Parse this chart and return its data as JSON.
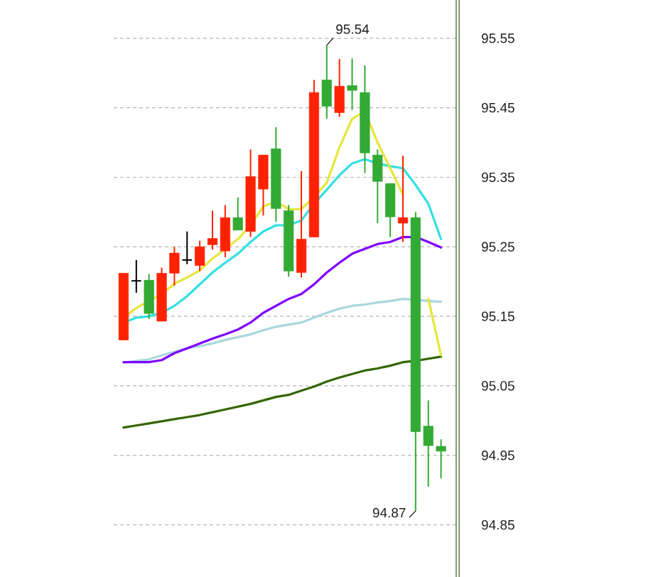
{
  "chart_data": {
    "type": "candlestick",
    "categories": [
      null,
      null,
      null,
      null,
      null,
      null,
      null,
      null,
      null,
      null,
      null,
      null,
      null,
      null,
      null,
      null,
      null,
      null,
      null,
      null,
      null,
      null,
      null,
      null,
      null,
      null
    ],
    "ohlc": [
      [
        95.116,
        95.212,
        95.116,
        95.212
      ],
      [
        95.201,
        95.231,
        95.184,
        95.201
      ],
      [
        95.202,
        95.211,
        95.146,
        95.154
      ],
      [
        95.143,
        95.22,
        95.143,
        95.212
      ],
      [
        95.212,
        95.25,
        95.194,
        95.241
      ],
      [
        95.231,
        95.272,
        95.225,
        95.231
      ],
      [
        95.223,
        95.259,
        95.215,
        95.25
      ],
      [
        95.253,
        95.302,
        95.246,
        95.262
      ],
      [
        95.244,
        95.31,
        95.235,
        95.292
      ],
      [
        95.292,
        95.321,
        95.274,
        95.274
      ],
      [
        95.272,
        95.39,
        95.264,
        95.351
      ],
      [
        95.333,
        95.382,
        95.295,
        95.382
      ],
      [
        95.391,
        95.422,
        95.286,
        95.305
      ],
      [
        95.302,
        95.31,
        95.207,
        95.215
      ],
      [
        95.213,
        95.359,
        95.206,
        95.261
      ],
      [
        95.264,
        95.49,
        95.264,
        95.472
      ],
      [
        95.49,
        95.54,
        95.434,
        95.452
      ],
      [
        95.443,
        95.52,
        95.437,
        95.481
      ],
      [
        95.482,
        95.521,
        95.447,
        95.475
      ],
      [
        95.472,
        95.511,
        95.356,
        95.385
      ],
      [
        95.382,
        95.39,
        95.284,
        95.344
      ],
      [
        95.341,
        95.341,
        95.264,
        95.293
      ],
      [
        95.284,
        95.381,
        95.257,
        95.292
      ],
      [
        95.292,
        95.3,
        94.87,
        94.984
      ],
      [
        94.992,
        95.029,
        94.905,
        94.964
      ],
      [
        94.963,
        94.973,
        94.917,
        94.956
      ]
    ],
    "colors": [
      "#ff2200",
      "#000000",
      "#33aa33",
      "#ff2200",
      "#ff2200",
      "#000000",
      "#ff2200",
      "#ff2200",
      "#ff2200",
      "#33aa33",
      "#ff2200",
      "#ff2200",
      "#33aa33",
      "#33aa33",
      "#ff2200",
      "#ff2200",
      "#33aa33",
      "#ff2200",
      "#33aa33",
      "#33aa33",
      "#33aa33",
      "#33aa33",
      "#ff2200",
      "#33aa33",
      "#33aa33",
      "#33aa33"
    ],
    "series": [
      {
        "type": "line",
        "color": "#336600",
        "values": [
          94.99,
          94.993,
          94.996,
          94.999,
          95.002,
          95.005,
          95.008,
          95.012,
          95.016,
          95.02,
          95.024,
          95.029,
          95.034,
          95.037,
          95.043,
          95.049,
          95.056,
          95.062,
          95.067,
          95.072,
          95.075,
          95.079,
          95.084,
          95.086,
          95.089,
          95.092
        ]
      },
      {
        "type": "line",
        "color": "#a8d8dc",
        "values": [
          95.083,
          95.086,
          95.088,
          95.094,
          95.099,
          95.104,
          95.107,
          95.111,
          95.116,
          95.12,
          95.124,
          95.13,
          95.135,
          95.138,
          95.141,
          95.148,
          95.155,
          95.161,
          95.165,
          95.167,
          95.17,
          95.172,
          95.175,
          95.174,
          95.172,
          95.171
        ]
      },
      {
        "type": "line",
        "color": "#8000ff",
        "values": [
          95.084,
          95.084,
          95.084,
          95.087,
          95.097,
          95.104,
          95.111,
          95.118,
          95.124,
          95.131,
          95.141,
          95.155,
          95.165,
          95.175,
          95.182,
          95.196,
          95.213,
          95.227,
          95.24,
          95.247,
          95.254,
          95.257,
          95.264,
          95.264,
          95.257,
          95.249
        ]
      },
      {
        "type": "line",
        "color": "#33e0e0",
        "values": [
          95.141,
          95.148,
          95.15,
          95.155,
          95.165,
          95.179,
          95.196,
          95.213,
          95.227,
          95.24,
          95.257,
          95.272,
          95.281,
          95.281,
          95.288,
          95.312,
          95.332,
          95.353,
          95.37,
          95.376,
          95.37,
          95.366,
          95.363,
          95.339,
          95.312,
          95.261
        ]
      },
      {
        "type": "line",
        "color": "#e6e63c",
        "values": [
          95.148,
          95.162,
          95.172,
          95.182,
          95.197,
          95.206,
          95.216,
          95.233,
          95.247,
          95.261,
          95.281,
          95.308,
          95.315,
          95.304,
          95.304,
          95.322,
          95.342,
          95.393,
          95.434,
          95.445,
          95.4,
          95.363,
          95.325,
          null,
          95.175,
          95.094
        ]
      }
    ],
    "ylim": [
      94.775,
      95.605
    ],
    "yticks": [
      94.85,
      94.95,
      95.05,
      95.15,
      95.25,
      95.35,
      95.45,
      95.55
    ],
    "grid": "y",
    "tick_labels": "y",
    "annotations": [
      "95.54",
      "94.87"
    ]
  }
}
